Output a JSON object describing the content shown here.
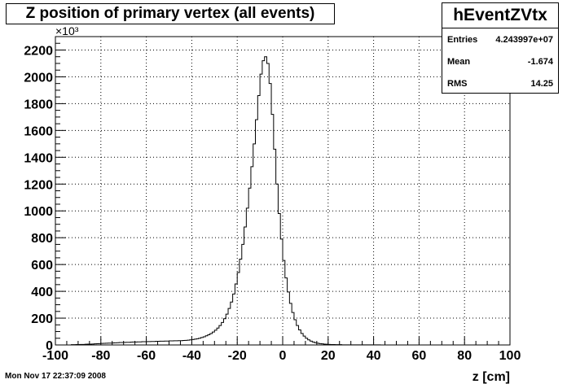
{
  "title": "Z position of primary vertex (all events)",
  "stats": {
    "name": "hEventZVtx",
    "entries_label": "Entries",
    "entries_value": "4.243997e+07",
    "mean_label": "Mean",
    "mean_value": "-1.674",
    "rms_label": "RMS",
    "rms_value": "14.25"
  },
  "timestamp": "Mon Nov 17 22:37:09 2008",
  "chart_data": {
    "type": "histogram",
    "title": "Z position of primary vertex (all events)",
    "xlabel": "z [cm]",
    "ylabel": "",
    "y_multiplier_label": "×10³",
    "xlim": [
      -100,
      100
    ],
    "ylim": [
      0,
      2300
    ],
    "grid": true,
    "xticks": [
      -100,
      -80,
      -60,
      -40,
      -20,
      0,
      20,
      40,
      60,
      80,
      100
    ],
    "yticks": [
      0,
      200,
      400,
      600,
      800,
      1000,
      1200,
      1400,
      1600,
      1800,
      2000,
      2200
    ],
    "bin_width": 1,
    "centers": [
      -92.5,
      -91.5,
      -90.5,
      -89.5,
      -88.5,
      -87.5,
      -86.5,
      -85.5,
      -84.5,
      -83.5,
      -82.5,
      -81.5,
      -80.5,
      -79.5,
      -78.5,
      -77.5,
      -76.5,
      -75.5,
      -74.5,
      -73.5,
      -72.5,
      -71.5,
      -70.5,
      -69.5,
      -68.5,
      -67.5,
      -66.5,
      -65.5,
      -64.5,
      -63.5,
      -62.5,
      -61.5,
      -60.5,
      -59.5,
      -58.5,
      -57.5,
      -56.5,
      -55.5,
      -54.5,
      -53.5,
      -52.5,
      -51.5,
      -50.5,
      -49.5,
      -48.5,
      -47.5,
      -46.5,
      -45.5,
      -44.5,
      -43.5,
      -42.5,
      -41.5,
      -40.5,
      -39.5,
      -38.5,
      -37.5,
      -36.5,
      -35.5,
      -34.5,
      -33.5,
      -32.5,
      -31.5,
      -30.5,
      -29.5,
      -28.5,
      -27.5,
      -26.5,
      -25.5,
      -24.5,
      -23.5,
      -22.5,
      -21.5,
      -20.5,
      -19.5,
      -18.5,
      -17.5,
      -16.5,
      -15.5,
      -14.5,
      -13.5,
      -12.5,
      -11.5,
      -10.5,
      -9.5,
      -8.5,
      -7.5,
      -6.5,
      -5.5,
      -4.5,
      -3.5,
      -2.5,
      -1.5,
      -0.5,
      0.5,
      1.5,
      2.5,
      3.5,
      4.5,
      5.5,
      6.5,
      7.5,
      8.5,
      9.5,
      10.5,
      11.5,
      12.5,
      13.5,
      14.5,
      15.5,
      16.5,
      17.5,
      18.5,
      19.5,
      20.5,
      21.5,
      22.5,
      23.5,
      24.5,
      25.5,
      26.5,
      27.5,
      28.5,
      29.5,
      30.5,
      31.5,
      32.5,
      33.5,
      34.5,
      35.5,
      36.5,
      37.5,
      38.5,
      39.5,
      40.5,
      41.5,
      42.5,
      43.5,
      44.5,
      45.5,
      46.5,
      47.5,
      48.5,
      49.5,
      50.5,
      51.5,
      52.5,
      53.5,
      54.5,
      55.5,
      56.5,
      57.5,
      58.5,
      59.5,
      60.5
    ],
    "counts": [
      2,
      2,
      3,
      3,
      4,
      4,
      5,
      6,
      6,
      7,
      8,
      9,
      10,
      11,
      12,
      13,
      14,
      14,
      15,
      16,
      17,
      18,
      18,
      19,
      20,
      20,
      21,
      22,
      22,
      23,
      23,
      24,
      24,
      25,
      25,
      26,
      26,
      27,
      27,
      28,
      28,
      29,
      29,
      30,
      30,
      31,
      31,
      32,
      32,
      33,
      34,
      36,
      38,
      40,
      43,
      46,
      50,
      55,
      61,
      68,
      76,
      85,
      96,
      110,
      126,
      145,
      168,
      196,
      230,
      272,
      320,
      380,
      455,
      540,
      640,
      750,
      880,
      1020,
      1170,
      1330,
      1500,
      1680,
      1860,
      2020,
      2120,
      2150,
      2100,
      1950,
      1720,
      1460,
      1200,
      980,
      790,
      630,
      500,
      395,
      310,
      242,
      188,
      145,
      112,
      86,
      66,
      50,
      38,
      29,
      22,
      17,
      13,
      10,
      8,
      6,
      5,
      4,
      3,
      3,
      2,
      2,
      2,
      1,
      1,
      1,
      1,
      1,
      1,
      1,
      1,
      1,
      1,
      1,
      1,
      1,
      1,
      1,
      1,
      1,
      0,
      0,
      0,
      0,
      0,
      0,
      0,
      0,
      0,
      0,
      0,
      0,
      0,
      0,
      0,
      0,
      0,
      0
    ]
  }
}
